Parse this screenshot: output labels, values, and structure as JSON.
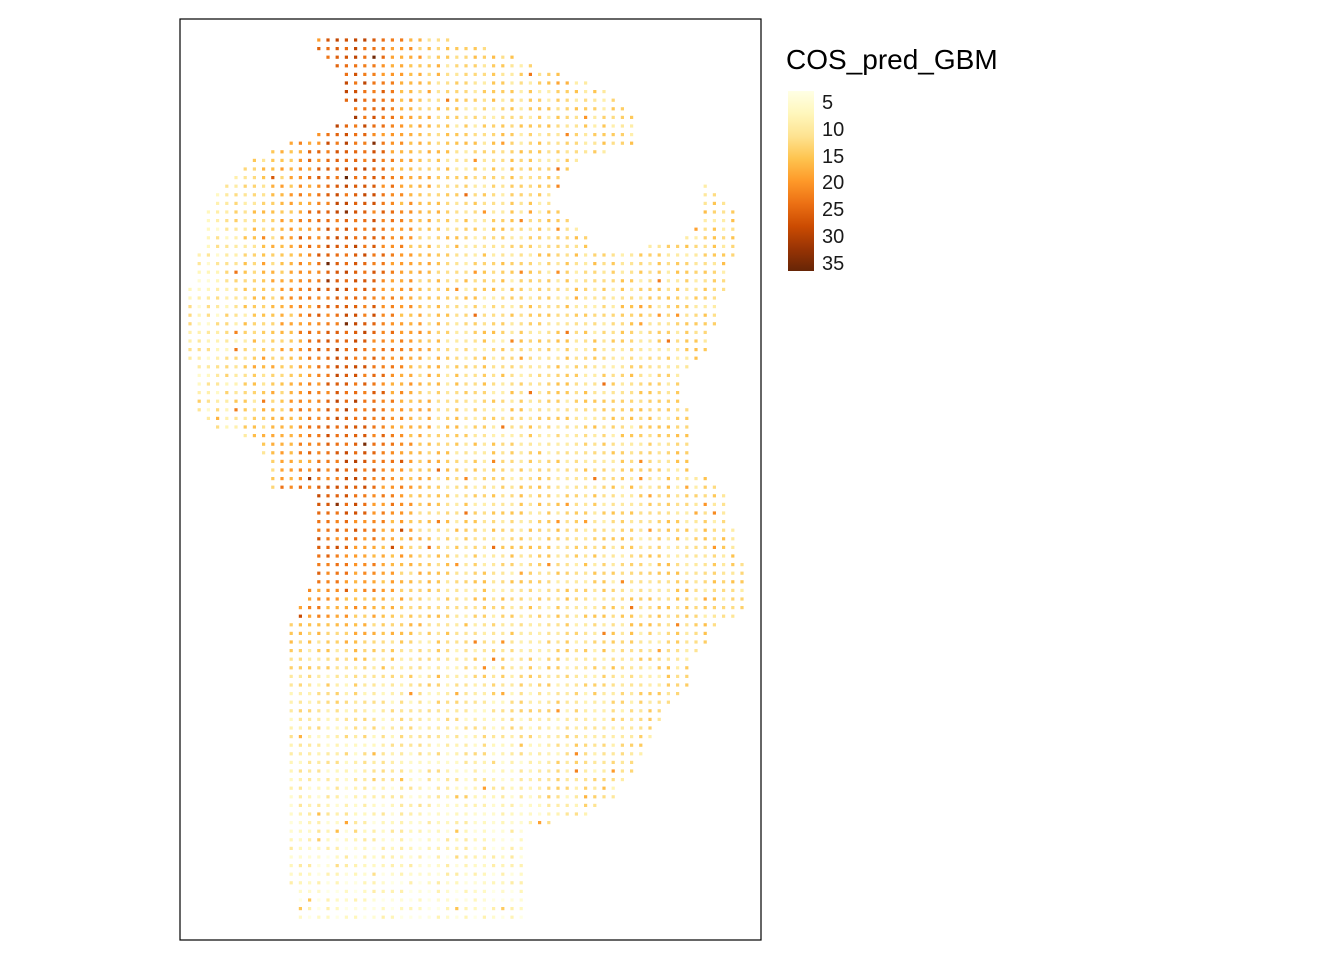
{
  "legend": {
    "title": "COS_pred_GBM",
    "breaks": [
      {
        "value": 5,
        "label": "5"
      },
      {
        "value": 10,
        "label": "10"
      },
      {
        "value": 15,
        "label": "15"
      },
      {
        "value": 20,
        "label": "20"
      },
      {
        "value": 25,
        "label": "25"
      },
      {
        "value": 30,
        "label": "30"
      },
      {
        "value": 35,
        "label": "35"
      }
    ],
    "range": [
      3,
      36
    ],
    "palette": [
      "#ffffe5",
      "#fff7bc",
      "#fee391",
      "#fec44f",
      "#fe9929",
      "#ec7014",
      "#cc4c02",
      "#993404",
      "#662506"
    ],
    "palette_name": "YlOrBr"
  },
  "map": {
    "frame": true,
    "symbol": "small square grid cells",
    "variable": "COS_pred_GBM"
  }
}
